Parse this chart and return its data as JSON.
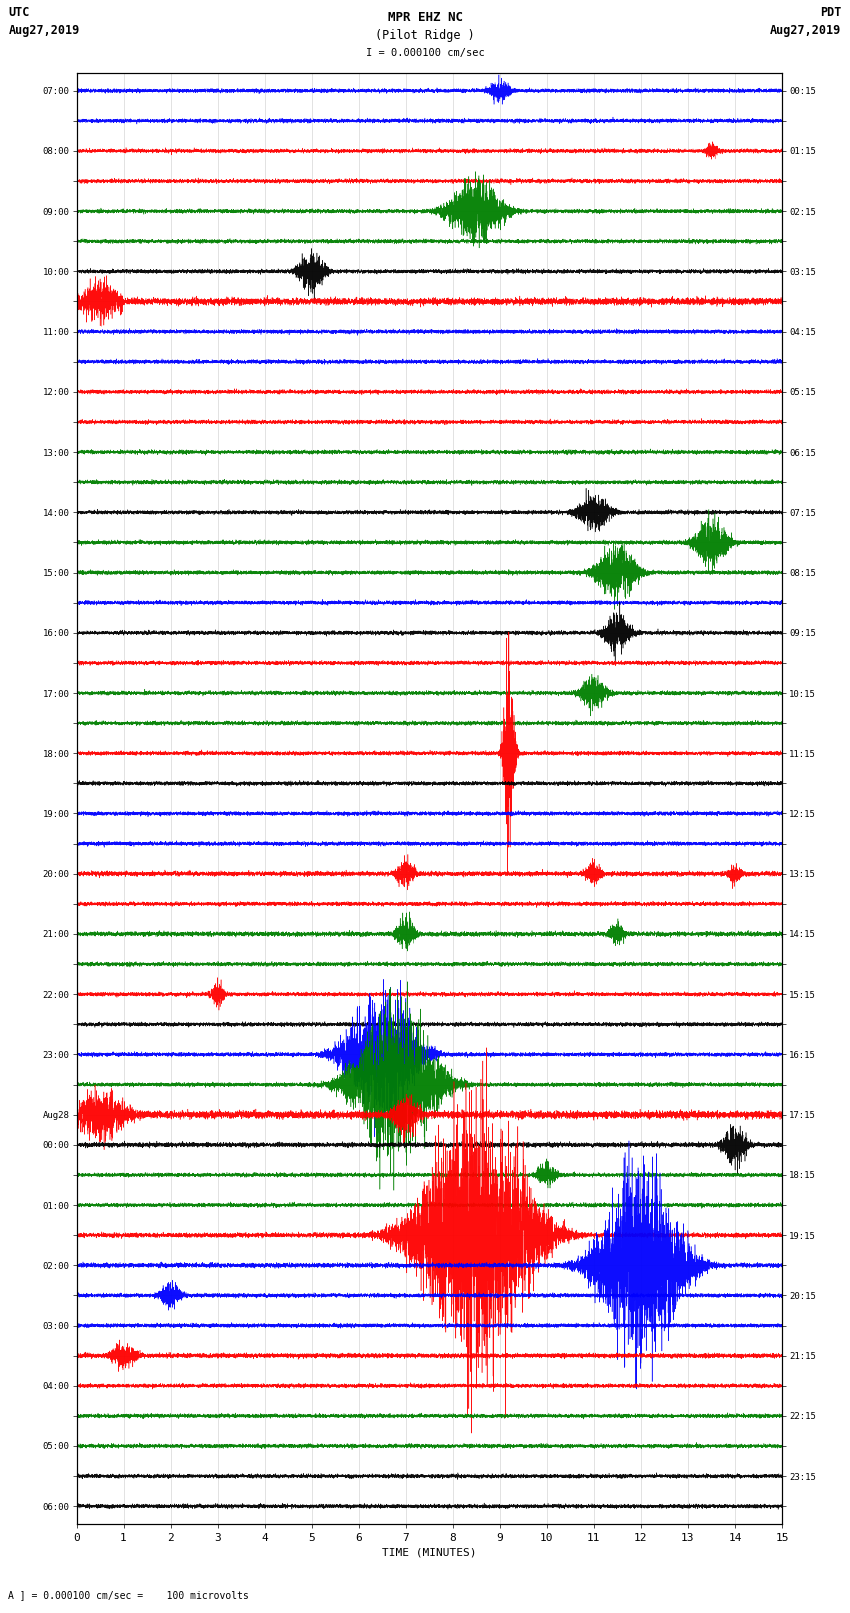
{
  "title_line1": "MPR EHZ NC",
  "title_line2": "(Pilot Ridge )",
  "scale_label": "I = 0.000100 cm/sec",
  "bottom_label": "A ] = 0.000100 cm/sec =    100 microvolts",
  "xlabel": "TIME (MINUTES)",
  "left_times": [
    "07:00",
    "",
    "08:00",
    "",
    "09:00",
    "",
    "10:00",
    "",
    "11:00",
    "",
    "12:00",
    "",
    "13:00",
    "",
    "14:00",
    "",
    "15:00",
    "",
    "16:00",
    "",
    "17:00",
    "",
    "18:00",
    "",
    "19:00",
    "",
    "20:00",
    "",
    "21:00",
    "",
    "22:00",
    "",
    "23:00",
    "",
    "Aug28",
    "00:00",
    "",
    "01:00",
    "",
    "02:00",
    "",
    "03:00",
    "",
    "04:00",
    "",
    "05:00",
    "",
    "06:00",
    ""
  ],
  "right_times": [
    "00:15",
    "",
    "01:15",
    "",
    "02:15",
    "",
    "03:15",
    "",
    "04:15",
    "",
    "05:15",
    "",
    "06:15",
    "",
    "07:15",
    "",
    "08:15",
    "",
    "09:15",
    "",
    "10:15",
    "",
    "11:15",
    "",
    "12:15",
    "",
    "13:15",
    "",
    "14:15",
    "",
    "15:15",
    "",
    "16:15",
    "",
    "17:15",
    "",
    "18:15",
    "",
    "19:15",
    "",
    "20:15",
    "",
    "21:15",
    "",
    "22:15",
    "",
    "23:15",
    ""
  ],
  "n_rows": 48,
  "x_min": 0,
  "x_max": 15,
  "bg_color": "#ffffff",
  "grid_color": "#cccccc"
}
